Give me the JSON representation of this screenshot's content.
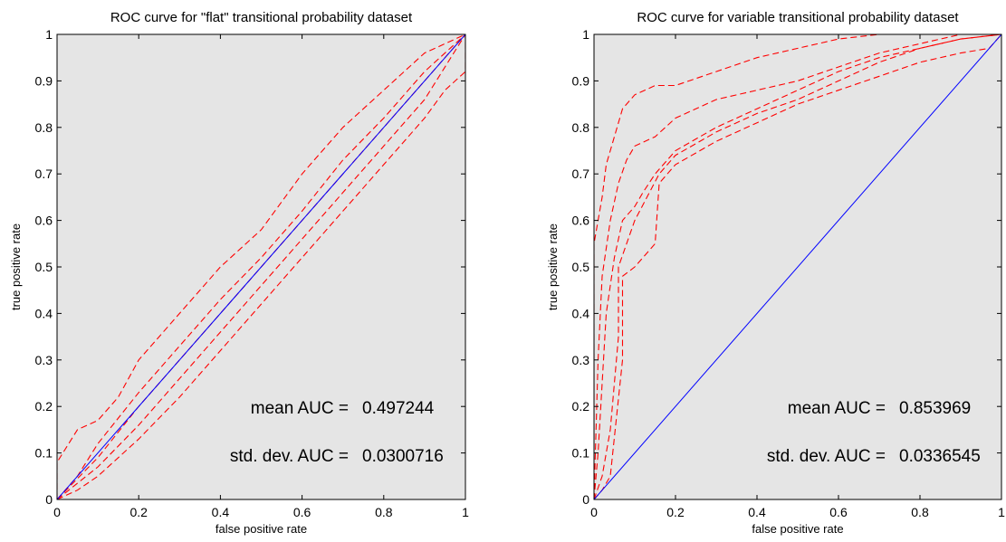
{
  "chart_data": [
    {
      "type": "line",
      "title": "ROC curve for \"flat\" transitional probability dataset",
      "xlabel": "false positive rate",
      "ylabel": "true positive rate",
      "xlim": [
        0,
        1
      ],
      "ylim": [
        0,
        1
      ],
      "xticks": [
        "0",
        "0.2",
        "0.4",
        "0.6",
        "0.8",
        "1"
      ],
      "yticks": [
        "0",
        "0.1",
        "0.2",
        "0.3",
        "0.4",
        "0.5",
        "0.6",
        "0.7",
        "0.8",
        "0.9",
        "1"
      ],
      "background": "#e5e5e5",
      "grid": false,
      "annotations": [
        {
          "label": "mean AUC =",
          "value": "0.497244"
        },
        {
          "label": "std. dev. AUC =",
          "value": "0.0300716"
        }
      ],
      "series": [
        {
          "style": "dashed",
          "color": "#ff0000",
          "x": [
            0,
            0,
            0.05,
            0.1,
            0.15,
            0.2,
            0.3,
            0.4,
            0.5,
            0.6,
            0.7,
            0.8,
            0.9,
            1
          ],
          "y": [
            0,
            0.08,
            0.15,
            0.17,
            0.22,
            0.3,
            0.4,
            0.5,
            0.58,
            0.7,
            0.8,
            0.88,
            0.96,
            1
          ]
        },
        {
          "style": "dashed",
          "color": "#ff0000",
          "x": [
            0,
            0.05,
            0.1,
            0.2,
            0.3,
            0.4,
            0.5,
            0.6,
            0.7,
            0.8,
            0.9,
            1
          ],
          "y": [
            0,
            0.05,
            0.12,
            0.23,
            0.33,
            0.43,
            0.52,
            0.62,
            0.73,
            0.82,
            0.92,
            1
          ]
        },
        {
          "style": "dashed",
          "color": "#ff0000",
          "x": [
            0,
            0.1,
            0.2,
            0.3,
            0.4,
            0.5,
            0.6,
            0.7,
            0.8,
            0.9,
            1
          ],
          "y": [
            0,
            0.09,
            0.2,
            0.3,
            0.4,
            0.5,
            0.6,
            0.7,
            0.8,
            0.9,
            1
          ]
        },
        {
          "style": "dashed",
          "color": "#ff0000",
          "x": [
            0,
            0.1,
            0.2,
            0.3,
            0.4,
            0.5,
            0.6,
            0.7,
            0.8,
            0.9,
            1
          ],
          "y": [
            0,
            0.07,
            0.16,
            0.26,
            0.36,
            0.46,
            0.56,
            0.66,
            0.76,
            0.86,
            1
          ]
        },
        {
          "style": "dashed",
          "color": "#ff0000",
          "x": [
            0,
            0.05,
            0.1,
            0.2,
            0.3,
            0.4,
            0.5,
            0.6,
            0.7,
            0.8,
            0.9,
            0.95,
            1,
            1
          ],
          "y": [
            0,
            0.02,
            0.05,
            0.13,
            0.22,
            0.32,
            0.42,
            0.52,
            0.62,
            0.72,
            0.82,
            0.88,
            0.92,
            1
          ]
        },
        {
          "style": "solid",
          "color": "#0000ff",
          "x": [
            0,
            1
          ],
          "y": [
            0,
            1
          ]
        }
      ]
    },
    {
      "type": "line",
      "title": "ROC curve for variable transitional probability dataset",
      "xlabel": "false positive rate",
      "ylabel": "true positive rate",
      "xlim": [
        0,
        1
      ],
      "ylim": [
        0,
        1
      ],
      "xticks": [
        "0",
        "0.2",
        "0.4",
        "0.6",
        "0.8",
        "1"
      ],
      "yticks": [
        "0",
        "0.1",
        "0.2",
        "0.3",
        "0.4",
        "0.5",
        "0.6",
        "0.7",
        "0.8",
        "0.9",
        "1"
      ],
      "background": "#e5e5e5",
      "grid": false,
      "annotations": [
        {
          "label": "mean AUC =",
          "value": "0.853969"
        },
        {
          "label": "std. dev. AUC =",
          "value": "0.0336545"
        }
      ],
      "series": [
        {
          "style": "dashed",
          "color": "#ff0000",
          "x": [
            0,
            0,
            0.02,
            0.03,
            0.05,
            0.07,
            0.1,
            0.15,
            0.2,
            0.3,
            0.4,
            0.5,
            0.6,
            0.7,
            0.8,
            0.9,
            1
          ],
          "y": [
            0,
            0.55,
            0.65,
            0.72,
            0.78,
            0.84,
            0.87,
            0.89,
            0.89,
            0.92,
            0.95,
            0.97,
            0.99,
            1,
            1,
            1,
            1
          ]
        },
        {
          "style": "dashed",
          "color": "#ff0000",
          "x": [
            0,
            0.01,
            0.02,
            0.04,
            0.06,
            0.08,
            0.1,
            0.15,
            0.2,
            0.3,
            0.4,
            0.5,
            0.6,
            0.7,
            0.8,
            0.9,
            1
          ],
          "y": [
            0,
            0.3,
            0.48,
            0.6,
            0.68,
            0.73,
            0.76,
            0.78,
            0.82,
            0.86,
            0.88,
            0.9,
            0.93,
            0.96,
            0.98,
            1,
            1
          ]
        },
        {
          "style": "dashed",
          "color": "#ff0000",
          "x": [
            0,
            0.01,
            0.02,
            0.03,
            0.05,
            0.07,
            0.1,
            0.12,
            0.15,
            0.2,
            0.3,
            0.4,
            0.5,
            0.6,
            0.7,
            0.8,
            0.9,
            1
          ],
          "y": [
            0,
            0.1,
            0.25,
            0.4,
            0.52,
            0.6,
            0.63,
            0.66,
            0.7,
            0.75,
            0.8,
            0.84,
            0.88,
            0.92,
            0.95,
            0.97,
            0.99,
            1
          ]
        },
        {
          "style": "dashed",
          "color": "#ff0000",
          "x": [
            0,
            0.02,
            0.04,
            0.06,
            0.06,
            0.08,
            0.1,
            0.13,
            0.16,
            0.2,
            0.3,
            0.4,
            0.5,
            0.6,
            0.7,
            0.8,
            0.9,
            1
          ],
          "y": [
            0,
            0.05,
            0.15,
            0.35,
            0.5,
            0.55,
            0.6,
            0.65,
            0.7,
            0.74,
            0.79,
            0.83,
            0.86,
            0.9,
            0.94,
            0.97,
            0.99,
            1
          ]
        },
        {
          "style": "dashed",
          "color": "#ff0000",
          "x": [
            0,
            0.02,
            0.04,
            0.07,
            0.07,
            0.1,
            0.15,
            0.16,
            0.2,
            0.3,
            0.4,
            0.5,
            0.6,
            0.7,
            0.8,
            0.9,
            0.97,
            1
          ],
          "y": [
            0,
            0.02,
            0.05,
            0.3,
            0.48,
            0.5,
            0.55,
            0.68,
            0.72,
            0.77,
            0.81,
            0.85,
            0.88,
            0.91,
            0.94,
            0.96,
            0.97,
            1
          ]
        },
        {
          "style": "solid",
          "color": "#0000ff",
          "x": [
            0,
            1
          ],
          "y": [
            0,
            1
          ]
        }
      ]
    }
  ]
}
